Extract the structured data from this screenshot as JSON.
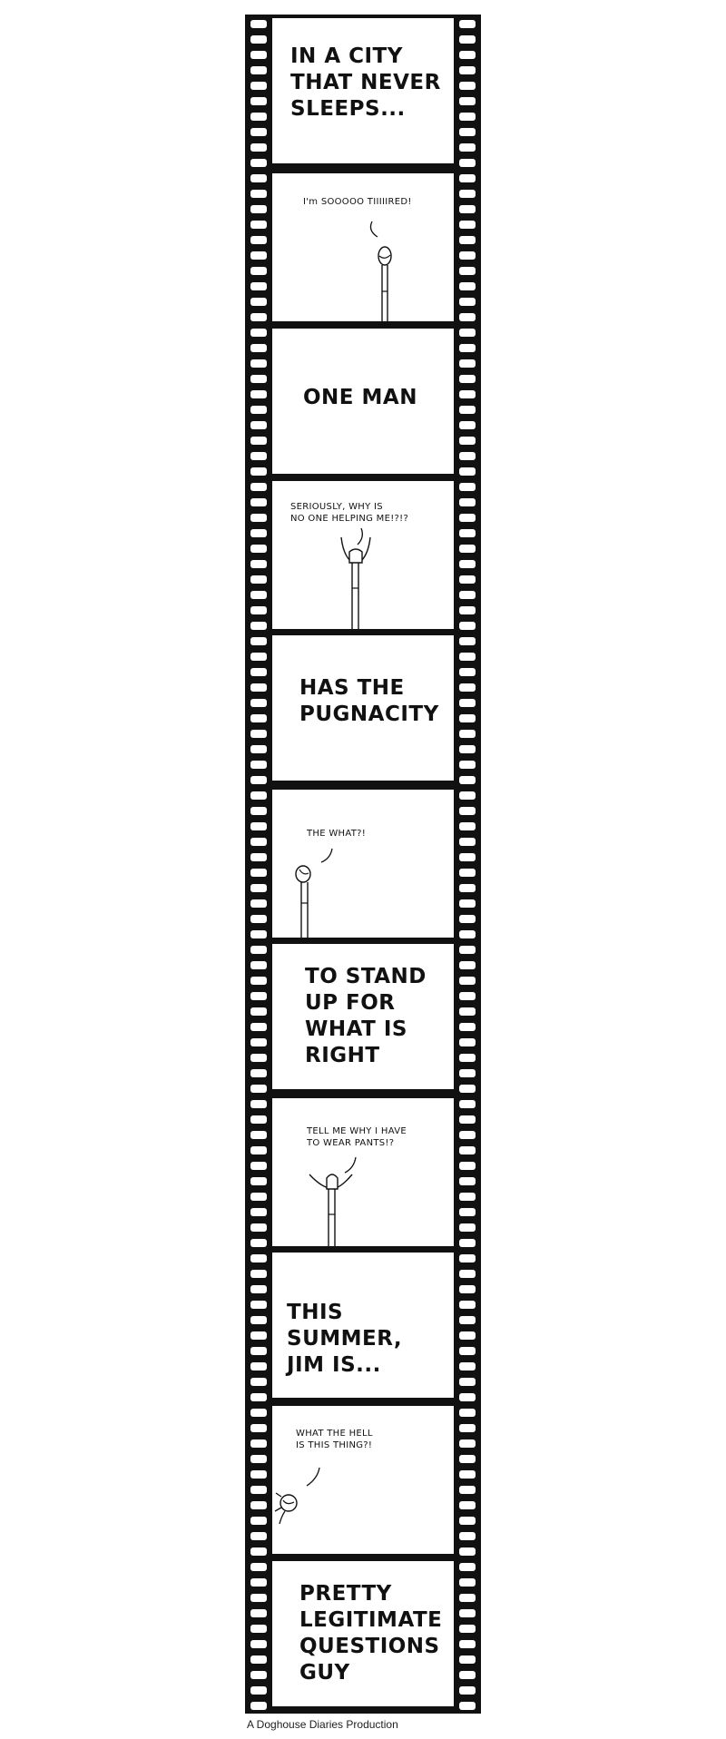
{
  "comic": {
    "panels": [
      {
        "type": "title",
        "text": "IN A CITY\nTHAT NEVER\nSLEEPS..."
      },
      {
        "type": "scene",
        "speech": "I'm SOOOOO TIIIIIRED!"
      },
      {
        "type": "title",
        "text": "ONE MAN"
      },
      {
        "type": "scene",
        "speech": "SERIOUSLY, WHY IS\nNO ONE HELPING ME!?!?"
      },
      {
        "type": "title",
        "text": "HAS THE\nPUGNACITY"
      },
      {
        "type": "scene",
        "speech": "THE WHAT?!"
      },
      {
        "type": "title",
        "text": "TO STAND\nUP FOR\nWHAT IS\nRIGHT"
      },
      {
        "type": "scene",
        "speech": "TELL ME WHY I HAVE\nTO WEAR PANTS!?"
      },
      {
        "type": "title",
        "text": "THIS SUMMER,\nJIM IS..."
      },
      {
        "type": "scene",
        "speech": "WHAT THE HELL\nIS THIS THING?!"
      },
      {
        "type": "title",
        "text": "PRETTY\nLEGITIMATE\nQUESTIONS\nGUY"
      }
    ],
    "credit": "A Doghouse Diaries Production"
  },
  "colors": {
    "film": "#111111",
    "frame": "#ffffff",
    "ink": "#111111"
  }
}
